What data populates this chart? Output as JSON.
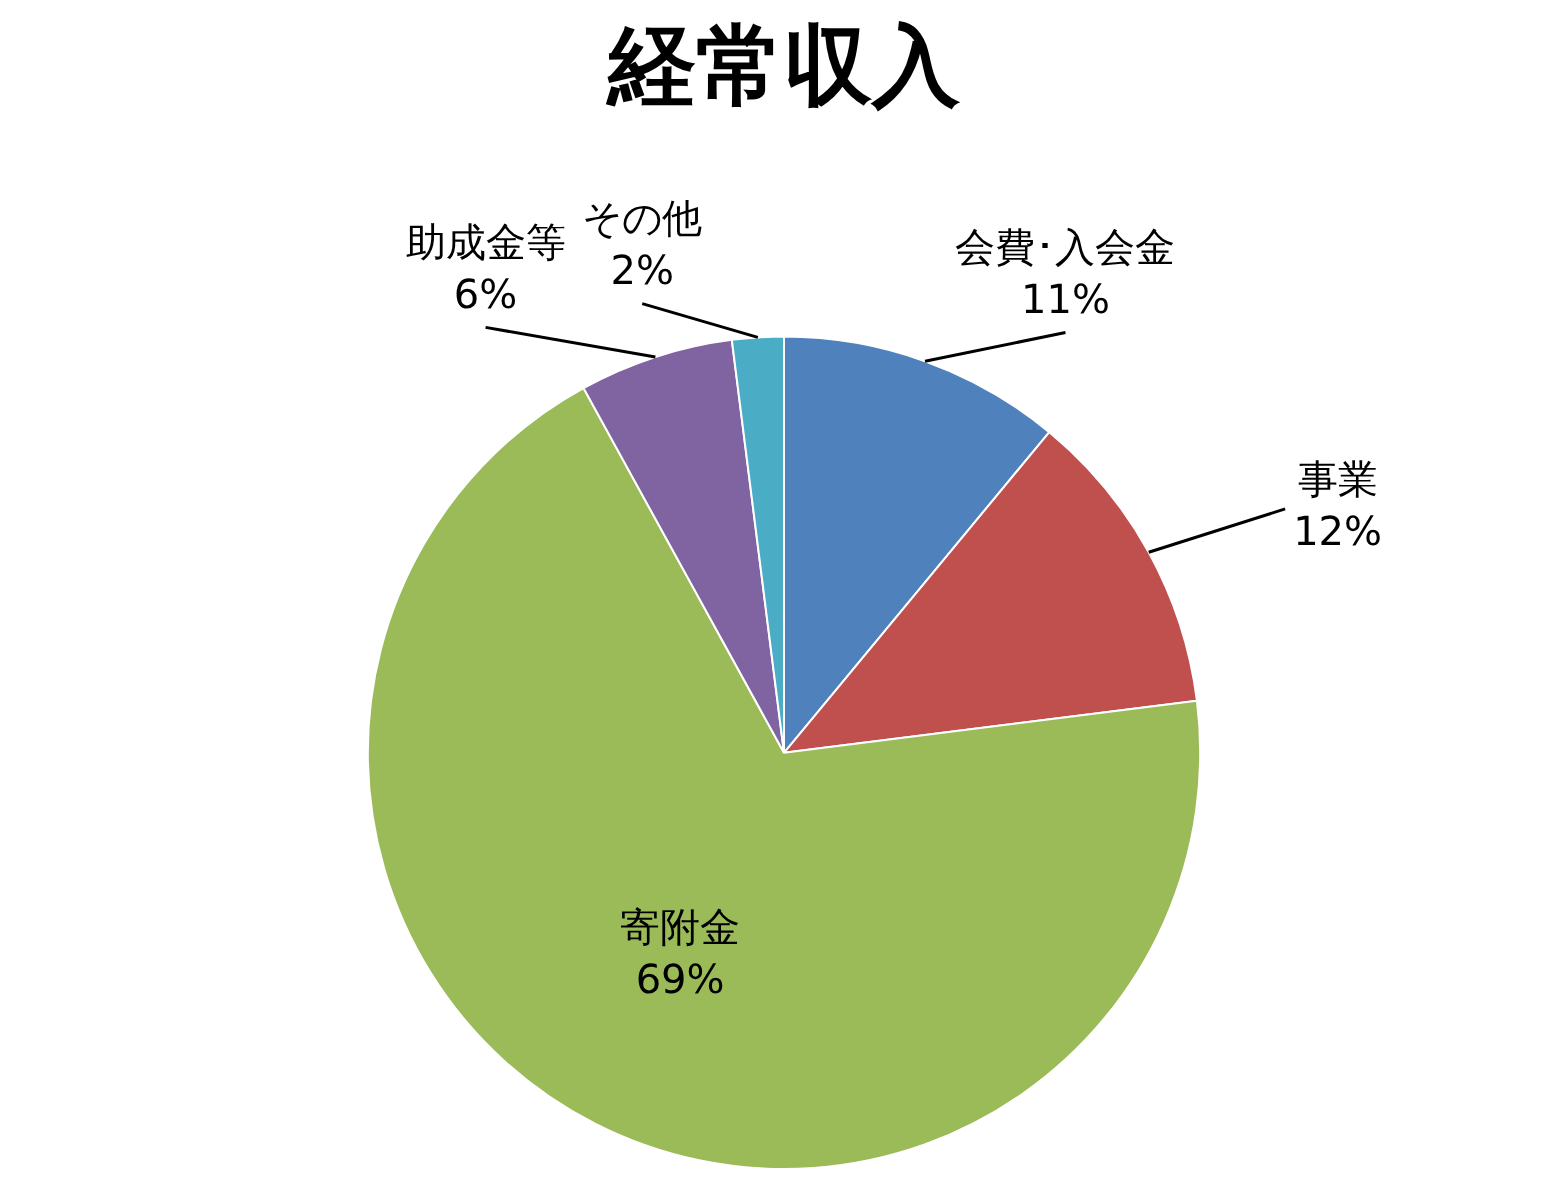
{
  "chart_data": {
    "type": "pie",
    "title": "経常収入",
    "categories": [
      "会費･入会金",
      "事業",
      "寄附金",
      "助成金等",
      "その他"
    ],
    "values": [
      11,
      12,
      69,
      6,
      2
    ],
    "value_labels": [
      "11%",
      "12%",
      "69%",
      "6%",
      "2%"
    ],
    "colors": [
      "#4f81bd",
      "#c0504d",
      "#9bbb59",
      "#8064a2",
      "#4bacc6"
    ],
    "legend": false
  }
}
